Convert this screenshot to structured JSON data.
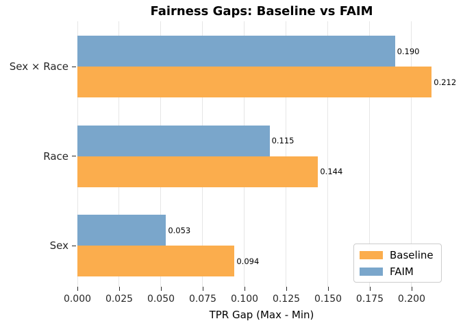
{
  "chart_data": {
    "type": "bar",
    "orientation": "horizontal",
    "title": "Fairness Gaps: Baseline vs FAIM",
    "xlabel": "TPR Gap (Max - Min)",
    "ylabel": "",
    "categories": [
      "Sex × Race",
      "Race",
      "Sex"
    ],
    "series": [
      {
        "name": "Baseline",
        "color": "#FBAD4D",
        "values": [
          0.212,
          0.144,
          0.094
        ]
      },
      {
        "name": "FAIM",
        "color": "#7AA6CB",
        "values": [
          0.19,
          0.115,
          0.053
        ]
      }
    ],
    "xlim": [
      0,
      0.2205
    ],
    "xticks": [
      0.0,
      0.025,
      0.05,
      0.075,
      0.1,
      0.125,
      0.15,
      0.175,
      0.2
    ],
    "xtick_labels": [
      "0.000",
      "0.025",
      "0.050",
      "0.075",
      "0.100",
      "0.125",
      "0.150",
      "0.175",
      "0.200"
    ],
    "value_label_decimals": 3,
    "grid": "vertical",
    "gridline_color": "#e6e6e6",
    "legend_position": "lower right"
  }
}
